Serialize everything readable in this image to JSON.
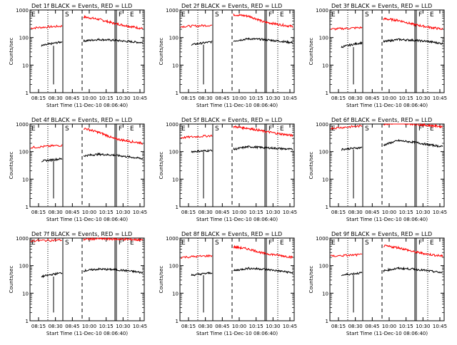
{
  "chart_data": {
    "type": "line",
    "y_scale": "log",
    "ylim": [
      1,
      1000
    ],
    "y_ticks": [
      1,
      10,
      100,
      1000
    ],
    "y_tick_labels": [
      "1",
      "10",
      "100",
      "1000"
    ],
    "ylabel": "Counts/sec",
    "xlabel": "Start Time (11-Dec-10 08:06:40)",
    "x_ticks": [
      "08:15",
      "08:30",
      "08:45",
      "10:00",
      "10:15",
      "10:30",
      "10:45"
    ],
    "marker_labels": [
      "E",
      "S",
      "F",
      "E"
    ],
    "series_colors": {
      "events": "#000000",
      "lld": "#ff0000"
    },
    "panels": [
      {
        "title": "Det 1f BLACK = Events, RED = LLD",
        "events": [
          50,
          70,
          75,
          85,
          80,
          72,
          65
        ],
        "lld": [
          220,
          260,
          560,
          460,
          330,
          260,
          210
        ]
      },
      {
        "title": "Det 2f BLACK = Events, RED = LLD",
        "events": [
          55,
          70,
          75,
          90,
          85,
          75,
          65
        ],
        "lld": [
          250,
          280,
          680,
          600,
          370,
          300,
          250
        ]
      },
      {
        "title": "Det 3f BLACK = Events, RED = LLD",
        "events": [
          45,
          65,
          70,
          85,
          80,
          72,
          60
        ],
        "lld": [
          200,
          230,
          480,
          420,
          300,
          240,
          200
        ]
      },
      {
        "title": "Det 4f BLACK = Events, RED = LLD",
        "events": [
          45,
          55,
          70,
          80,
          75,
          65,
          55
        ],
        "lld": [
          140,
          170,
          700,
          500,
          300,
          240,
          200
        ]
      },
      {
        "title": "Det 5f BLACK = Events, RED = LLD",
        "events": [
          100,
          110,
          120,
          150,
          140,
          130,
          120
        ],
        "lld": [
          320,
          380,
          800,
          700,
          550,
          450,
          380
        ]
      },
      {
        "title": "Det 6f BLACK = Events, RED = LLD",
        "events": [
          120,
          140,
          170,
          250,
          220,
          180,
          150
        ],
        "lld": [
          700,
          850,
          1000,
          1100,
          1000,
          900,
          800
        ]
      },
      {
        "title": "Det 7f BLACK = Events, RED = LLD",
        "events": [
          40,
          55,
          65,
          75,
          72,
          65,
          55
        ],
        "lld": [
          800,
          850,
          900,
          950,
          920,
          900,
          850
        ]
      },
      {
        "title": "Det 8f BLACK = Events, RED = LLD",
        "events": [
          45,
          55,
          65,
          80,
          75,
          65,
          55
        ],
        "lld": [
          200,
          230,
          480,
          400,
          280,
          240,
          200
        ]
      },
      {
        "title": "Det 9f BLACK = Events, RED = LLD",
        "events": [
          45,
          55,
          65,
          80,
          75,
          65,
          55
        ],
        "lld": [
          220,
          250,
          520,
          450,
          320,
          260,
          220
        ]
      }
    ]
  }
}
